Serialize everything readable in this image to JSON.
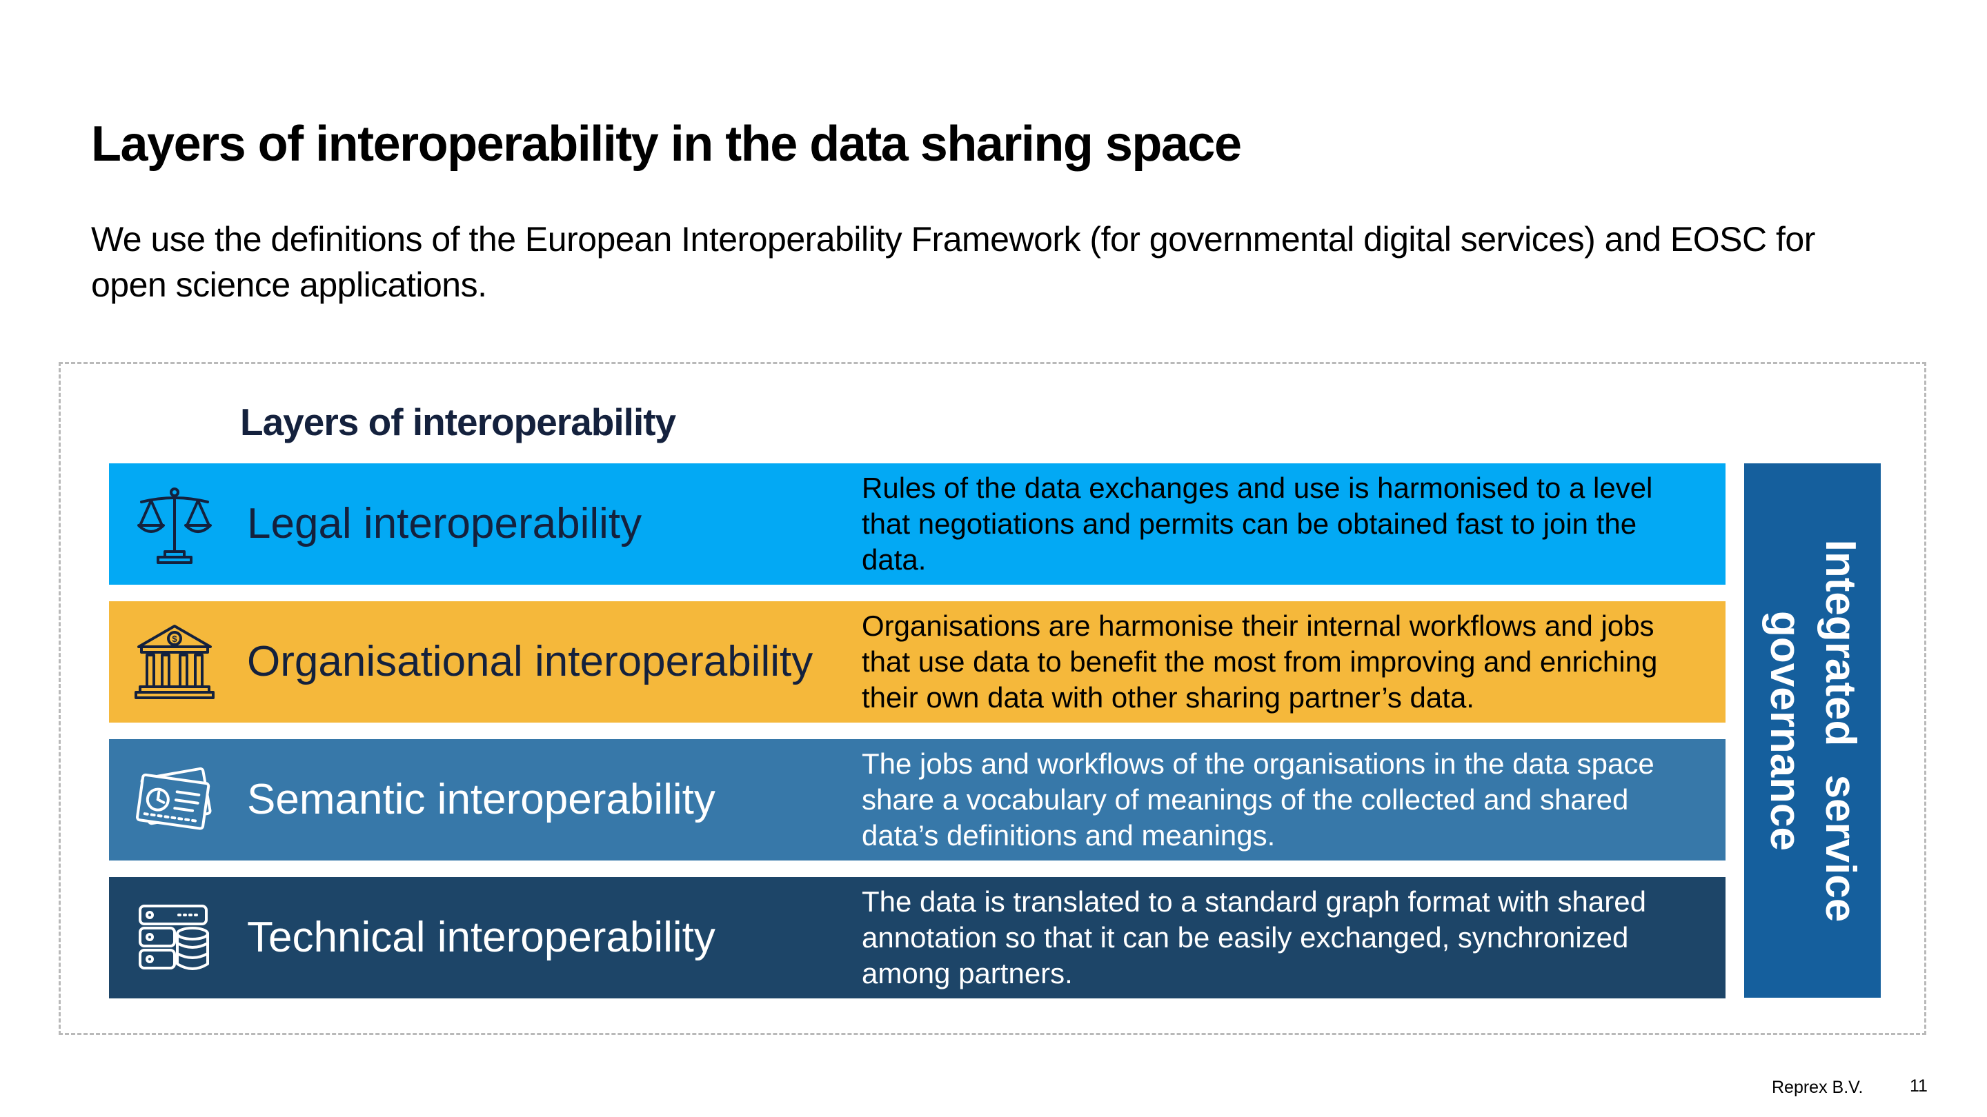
{
  "slide": {
    "title": "Layers of interoperability in the data sharing space",
    "subtitle": "We use the definitions of the European Interoperability Framework (for governmental digital services) and EOSC for open science applications."
  },
  "diagram": {
    "heading": "Layers of interoperability",
    "layers": [
      {
        "label": "Legal interoperability",
        "description": "Rules of the data exchanges and use is harmonised to a level that negotiations and permits can be obtained fast to join the data.",
        "color": "#03a9f4",
        "icon": "scales-of-justice-icon"
      },
      {
        "label": "Organisational interoperability",
        "description": "Organisations are harmonise their internal workflows and jobs that use data to benefit the most from improving and enriching their own data with other sharing partner’s data.",
        "color": "#f5b83b",
        "icon": "bank-building-icon"
      },
      {
        "label": "Semantic interoperability",
        "description": "The jobs and workflows of the organisations in the data space share a vocabulary of meanings of the collected and shared data’s definitions and meanings.",
        "color": "#3778a9",
        "icon": "documents-chart-icon"
      },
      {
        "label": "Technical interoperability",
        "description": "The data is translated to a standard graph format with shared annotation so that it can be easily exchanged, synchronized among partners.",
        "color": "#1d4568",
        "icon": "server-database-icon"
      }
    ],
    "governance": {
      "label": "Integrated service governance",
      "color": "#155f9d"
    }
  },
  "footer": {
    "company": "Reprex B.V.",
    "page_number": "11"
  }
}
